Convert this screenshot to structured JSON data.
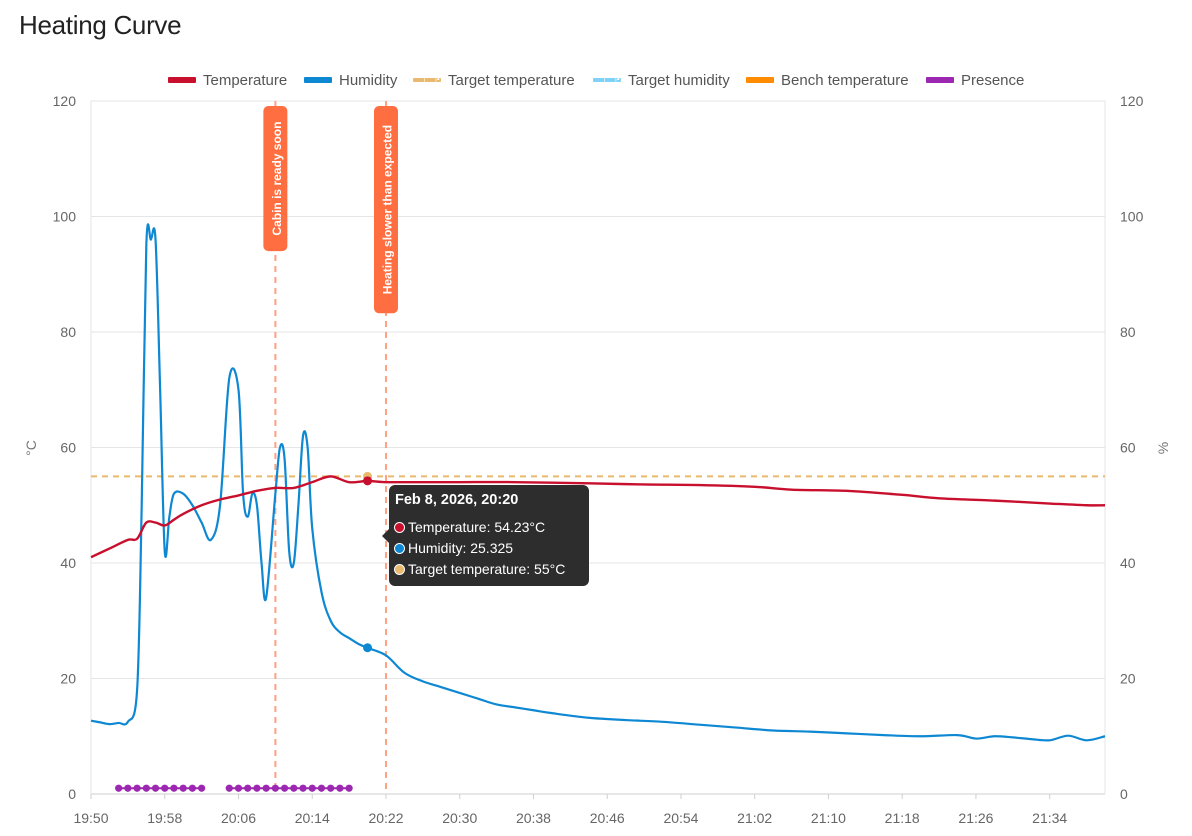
{
  "page_title": "Heating Curve",
  "colors": {
    "temperature": "#c8102e",
    "humidity": "#0e88d3",
    "target_temperature": "#e9b96e",
    "target_humidity": "#7fd1f5",
    "bench_temperature": "#ff8c00",
    "presence": "#9c27b0",
    "annotation": "#ff6e40"
  },
  "legend": [
    {
      "label": "Temperature",
      "color": "#c8102e",
      "style": "solid"
    },
    {
      "label": "Humidity",
      "color": "#0e88d3",
      "style": "solid"
    },
    {
      "label": "Target temperature",
      "color": "#e9b96e",
      "style": "dashed"
    },
    {
      "label": "Target humidity",
      "color": "#7fd1f5",
      "style": "dashed"
    },
    {
      "label": "Bench temperature",
      "color": "#ff8c00",
      "style": "solid"
    },
    {
      "label": "Presence",
      "color": "#9c27b0",
      "style": "solid"
    }
  ],
  "tooltip": {
    "title": "Feb 8, 2026, 20:20",
    "rows": [
      {
        "text": "Temperature: 54.23°C",
        "color": "#c8102e"
      },
      {
        "text": "Humidity: 25.325",
        "color": "#0e88d3"
      },
      {
        "text": "Target temperature: 55°C",
        "color": "#e9b96e"
      }
    ]
  },
  "chart_data": {
    "type": "line",
    "xlabel": "",
    "ylabel_left": "°C",
    "ylabel_right": "%",
    "xlim": [
      "19:50",
      "21:40"
    ],
    "ylim_left": [
      0,
      120
    ],
    "ylim_right": [
      0,
      120
    ],
    "x_ticks": [
      "19:50",
      "19:58",
      "20:06",
      "20:14",
      "20:22",
      "20:30",
      "20:38",
      "20:46",
      "20:54",
      "21:02",
      "21:10",
      "21:18",
      "21:26",
      "21:34"
    ],
    "y_ticks_left": [
      0,
      20,
      40,
      60,
      80,
      100,
      120
    ],
    "y_ticks_right": [
      0,
      20,
      40,
      60,
      80,
      100,
      120
    ],
    "grid": "horizontal",
    "legend_position": "top",
    "series": [
      {
        "name": "Temperature",
        "axis": "left",
        "x": [
          "19:50",
          "19:52",
          "19:54",
          "19:55",
          "19:56",
          "19:57",
          "19:58",
          "19:59",
          "20:00",
          "20:02",
          "20:04",
          "20:06",
          "20:08",
          "20:10",
          "20:12",
          "20:14",
          "20:16",
          "20:18",
          "20:20",
          "20:22",
          "20:26",
          "20:30",
          "20:36",
          "20:44",
          "20:50",
          "20:56",
          "21:02",
          "21:06",
          "21:12",
          "21:18",
          "21:22",
          "21:28",
          "21:34",
          "21:38",
          "21:40"
        ],
        "y": [
          41,
          42.5,
          44,
          44.2,
          47,
          47,
          46.5,
          47.5,
          48.5,
          50,
          51,
          51.7,
          52.5,
          53,
          53,
          54,
          55,
          54,
          54.2,
          54,
          54,
          54,
          54,
          53.8,
          53.6,
          53.5,
          53.2,
          52.7,
          52.5,
          51.8,
          51.2,
          50.8,
          50.3,
          50,
          50
        ]
      },
      {
        "name": "Humidity",
        "axis": "right",
        "x": [
          "19:50",
          "19:51",
          "19:52",
          "19:53",
          "19:54",
          "19:55",
          "19:55.5",
          "19:56",
          "19:56.5",
          "19:57",
          "19:57.5",
          "19:58",
          "19:58.5",
          "19:59",
          "20:00",
          "20:01",
          "20:02",
          "20:03",
          "20:04",
          "20:05",
          "20:06",
          "20:06.5",
          "20:07",
          "20:07.5",
          "20:08",
          "20:08.5",
          "20:09",
          "20:10",
          "20:10.5",
          "20:11",
          "20:11.5",
          "20:12",
          "20:12.5",
          "20:13",
          "20:13.5",
          "20:14",
          "20:15",
          "20:16",
          "20:17",
          "20:18",
          "20:19",
          "20:20",
          "20:22",
          "20:24",
          "20:26",
          "20:28",
          "20:30",
          "20:32",
          "20:34",
          "20:36",
          "20:38",
          "20:40",
          "20:44",
          "20:48",
          "20:52",
          "20:56",
          "21:00",
          "21:04",
          "21:08",
          "21:12",
          "21:16",
          "21:20",
          "21:24",
          "21:26",
          "21:28",
          "21:30",
          "21:32",
          "21:34",
          "21:36",
          "21:38",
          "21:40"
        ],
        "y": [
          12.7,
          12.4,
          12.1,
          12.3,
          12.5,
          18,
          50,
          95,
          96,
          96,
          70,
          42,
          48,
          52,
          52,
          50,
          47,
          44,
          50,
          72,
          70,
          52,
          48,
          52,
          50,
          40,
          34,
          52,
          60,
          58,
          42,
          40,
          50,
          62,
          60,
          46,
          35,
          30,
          28,
          27,
          26,
          25.3,
          24,
          21,
          19.5,
          18.5,
          17.5,
          16.5,
          15.5,
          15,
          14.5,
          14,
          13.2,
          12.8,
          12.5,
          12,
          11.5,
          11,
          10.8,
          10.5,
          10.2,
          10,
          10.2,
          9.6,
          10,
          9.8,
          9.5,
          9.3,
          10.1,
          9.3,
          10
        ]
      },
      {
        "name": "Target temperature",
        "axis": "left",
        "x": [
          "19:50",
          "21:40"
        ],
        "y": [
          55,
          55
        ]
      },
      {
        "name": "Presence",
        "axis": "left",
        "x": [
          "19:53",
          "19:54",
          "19:55",
          "19:56",
          "19:57",
          "19:58",
          "19:59",
          "20:00",
          "20:01",
          "20:02",
          "20:05",
          "20:06",
          "20:07",
          "20:08",
          "20:09",
          "20:10",
          "20:11",
          "20:12",
          "20:13",
          "20:14",
          "20:15",
          "20:16",
          "20:17",
          "20:18"
        ],
        "y": [
          1,
          1,
          1,
          1,
          1,
          1,
          1,
          1,
          1,
          1,
          1,
          1,
          1,
          1,
          1,
          1,
          1,
          1,
          1,
          1,
          1,
          1,
          1,
          1
        ]
      }
    ],
    "annotations": [
      {
        "x": "20:10",
        "label": "Cabin is ready soon"
      },
      {
        "x": "20:22",
        "label": "Heating slower than expected"
      }
    ],
    "hover_point": {
      "x": "20:20",
      "temperature": 54.23,
      "humidity": 25.325,
      "target_temperature": 55
    }
  }
}
